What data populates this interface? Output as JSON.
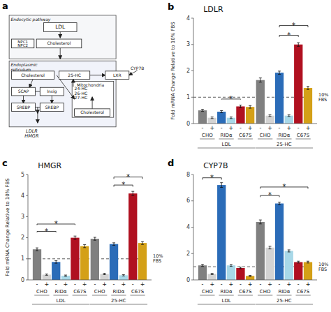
{
  "chart_data": [
    {
      "type": "diagram",
      "panel_label": "a",
      "annotations": [
        "Endocytic pathway",
        "LDL",
        "Cholesterol",
        "NPC1\nNPC2",
        "Endoplasmic\nreticulum",
        "Cholesterol",
        "25-HC",
        "LXR",
        "CYP7B",
        "SCAP",
        "Insig",
        "SREBP",
        "SREBP",
        "LDLR\nHMGR",
        "Mitochondria",
        "24-HC\n26-HC\n27-HC",
        "Cholesterol"
      ]
    },
    {
      "type": "bar",
      "panel_label": "b",
      "title": "LDLR",
      "y_label": "Fold mRNA Change Relative to 10% FBS",
      "categories": [
        "-",
        "+",
        "-",
        "+",
        "-",
        "+",
        "-",
        "+",
        "-",
        "+",
        "-",
        "+"
      ],
      "cell_labels": [
        "CHO",
        "RIDα",
        "C67S",
        "CHO",
        "RIDα",
        "C67S"
      ],
      "group_labels": [
        "LDL",
        "25-HC"
      ],
      "values": [
        0.5,
        0.22,
        0.45,
        0.22,
        0.65,
        0.63,
        1.65,
        0.3,
        1.93,
        0.3,
        3.0,
        1.35
      ],
      "errors": [
        0.04,
        0.03,
        0.04,
        0.03,
        0.05,
        0.05,
        0.08,
        0.03,
        0.06,
        0.03,
        0.07,
        0.06
      ],
      "colors": [
        "#808080",
        "#d3d3d3",
        "#2b6cb8",
        "#a8d8e8",
        "#b01020",
        "#d4a017",
        "#808080",
        "#d3d3d3",
        "#2b6cb8",
        "#a8d8e8",
        "#b01020",
        "#d4a017"
      ],
      "ylim": [
        0,
        4.0
      ],
      "yticks": [
        0,
        1,
        2,
        3,
        4
      ],
      "grid": false,
      "reference_line": {
        "y": 1.0,
        "label": "10%\nFBS"
      },
      "sig_brackets": [
        {
          "from": 2,
          "to": 4,
          "y": 0.93,
          "label": "*"
        },
        {
          "from": 8,
          "to": 10,
          "y": 3.35,
          "label": "*"
        },
        {
          "from": 8,
          "to": 11,
          "y": 3.72,
          "label": "*"
        }
      ]
    },
    {
      "type": "bar",
      "panel_label": "c",
      "title": "HMGR",
      "y_label": "Fold mRNA Change Relative to 10% FBS",
      "categories": [
        "-",
        "+",
        "-",
        "+",
        "-",
        "+",
        "-",
        "+",
        "-",
        "+",
        "-",
        "+"
      ],
      "cell_labels": [
        "CHO",
        "RIDα",
        "C67S",
        "CHO",
        "RIDα",
        "C67S"
      ],
      "group_labels": [
        "LDL",
        "25-HC"
      ],
      "values": [
        1.45,
        0.25,
        0.85,
        0.2,
        2.0,
        1.6,
        1.95,
        0.28,
        1.7,
        0.22,
        4.1,
        1.75
      ],
      "errors": [
        0.07,
        0.03,
        0.06,
        0.03,
        0.08,
        0.07,
        0.07,
        0.03,
        0.06,
        0.03,
        0.1,
        0.07
      ],
      "colors": [
        "#808080",
        "#d3d3d3",
        "#2b6cb8",
        "#a8d8e8",
        "#b01020",
        "#d4a017",
        "#808080",
        "#d3d3d3",
        "#2b6cb8",
        "#a8d8e8",
        "#b01020",
        "#d4a017"
      ],
      "ylim": [
        0,
        5.0
      ],
      "yticks": [
        0,
        1,
        2,
        3,
        4,
        5
      ],
      "grid": false,
      "reference_line": {
        "y": 1.0,
        "label": "10%\nFBS"
      },
      "sig_brackets": [
        {
          "from": 0,
          "to": 2,
          "y": 2.3,
          "label": "*"
        },
        {
          "from": 0,
          "to": 4,
          "y": 2.65,
          "label": "*"
        },
        {
          "from": 8,
          "to": 10,
          "y": 4.5,
          "label": "*"
        },
        {
          "from": 8,
          "to": 11,
          "y": 4.88,
          "label": "*"
        }
      ]
    },
    {
      "type": "bar",
      "panel_label": "d",
      "title": "CYP7B",
      "categories": [
        "-",
        "+",
        "-",
        "+",
        "-",
        "+",
        "-",
        "+",
        "-",
        "+",
        "-",
        "+"
      ],
      "cell_labels": [
        "CHO",
        "RIDα",
        "C67S",
        "CHO",
        "RIDα",
        "C67S"
      ],
      "group_labels": [
        "LDL",
        "25-HC"
      ],
      "values": [
        1.1,
        0.45,
        7.2,
        1.1,
        0.9,
        0.3,
        4.4,
        2.45,
        5.8,
        2.2,
        1.35,
        1.35
      ],
      "errors": [
        0.08,
        0.05,
        0.18,
        0.07,
        0.06,
        0.04,
        0.15,
        0.1,
        0.1,
        0.08,
        0.07,
        0.07
      ],
      "colors": [
        "#808080",
        "#d3d3d3",
        "#2b6cb8",
        "#a8d8e8",
        "#b01020",
        "#d4a017",
        "#808080",
        "#d3d3d3",
        "#2b6cb8",
        "#a8d8e8",
        "#b01020",
        "#d4a017"
      ],
      "ylim": [
        0,
        8.0
      ],
      "yticks": [
        0,
        2,
        4,
        6,
        8
      ],
      "grid": false,
      "reference_line": {
        "y": 1.0,
        "label": "10%\nFBS"
      },
      "sig_brackets": [
        {
          "from": 0,
          "to": 2,
          "y": 7.75,
          "label": "*"
        },
        {
          "from": 6,
          "to": 8,
          "y": 6.4,
          "label": "*"
        },
        {
          "from": 6,
          "to": 11,
          "y": 7.05,
          "label": "*"
        }
      ]
    }
  ]
}
